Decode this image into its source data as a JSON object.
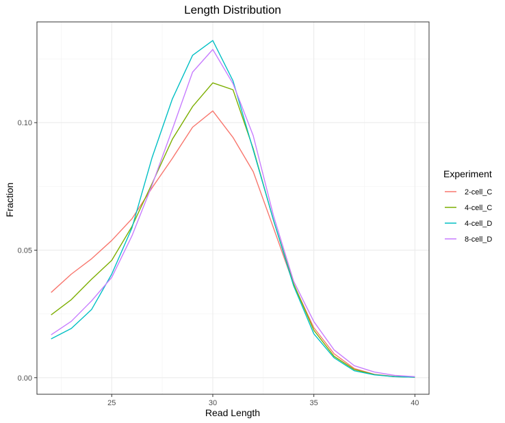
{
  "chart_data": {
    "type": "line",
    "title": "Length Distribution",
    "xlabel": "Read Length",
    "ylabel": "Fraction",
    "xlim": [
      21.3,
      40.7
    ],
    "ylim": [
      -0.0065,
      0.1395
    ],
    "x_ticks": [
      25,
      30,
      35,
      40
    ],
    "y_ticks": [
      0.0,
      0.05,
      0.1
    ],
    "y_tick_labels": [
      "0.00",
      "0.05",
      "0.10"
    ],
    "grid": true,
    "legend": {
      "title": "Experiment",
      "position": "right"
    },
    "x": [
      22,
      23,
      24,
      25,
      26,
      27,
      28,
      29,
      30,
      31,
      32,
      33,
      34,
      35,
      36,
      37,
      38,
      39,
      40
    ],
    "series": [
      {
        "name": "2-cell_C",
        "color": "#F8766D",
        "values": [
          0.0334,
          0.0406,
          0.0466,
          0.0538,
          0.0623,
          0.0745,
          0.086,
          0.0982,
          0.1046,
          0.0942,
          0.0808,
          0.0588,
          0.0366,
          0.0196,
          0.0094,
          0.0036,
          0.0013,
          0.0005,
          0.0002
        ]
      },
      {
        "name": "4-cell_C",
        "color": "#7CAE00",
        "values": [
          0.0246,
          0.0306,
          0.0386,
          0.046,
          0.0593,
          0.0762,
          0.0935,
          0.1063,
          0.1156,
          0.1129,
          0.0898,
          0.0618,
          0.0368,
          0.0186,
          0.0084,
          0.0032,
          0.0012,
          0.0004,
          0.0002
        ]
      },
      {
        "name": "4-cell_D",
        "color": "#00BFC4",
        "values": [
          0.0152,
          0.0193,
          0.0267,
          0.0406,
          0.0587,
          0.0864,
          0.1093,
          0.1264,
          0.1322,
          0.1164,
          0.0893,
          0.0619,
          0.036,
          0.0172,
          0.0078,
          0.0027,
          0.0011,
          0.0004,
          0.0002
        ]
      },
      {
        "name": "8-cell_D",
        "color": "#C77CFF",
        "values": [
          0.0168,
          0.0221,
          0.0301,
          0.0393,
          0.0556,
          0.0756,
          0.0974,
          0.1198,
          0.1287,
          0.1153,
          0.0949,
          0.0636,
          0.0378,
          0.022,
          0.0109,
          0.0047,
          0.0022,
          0.0009,
          0.0004
        ]
      }
    ]
  }
}
